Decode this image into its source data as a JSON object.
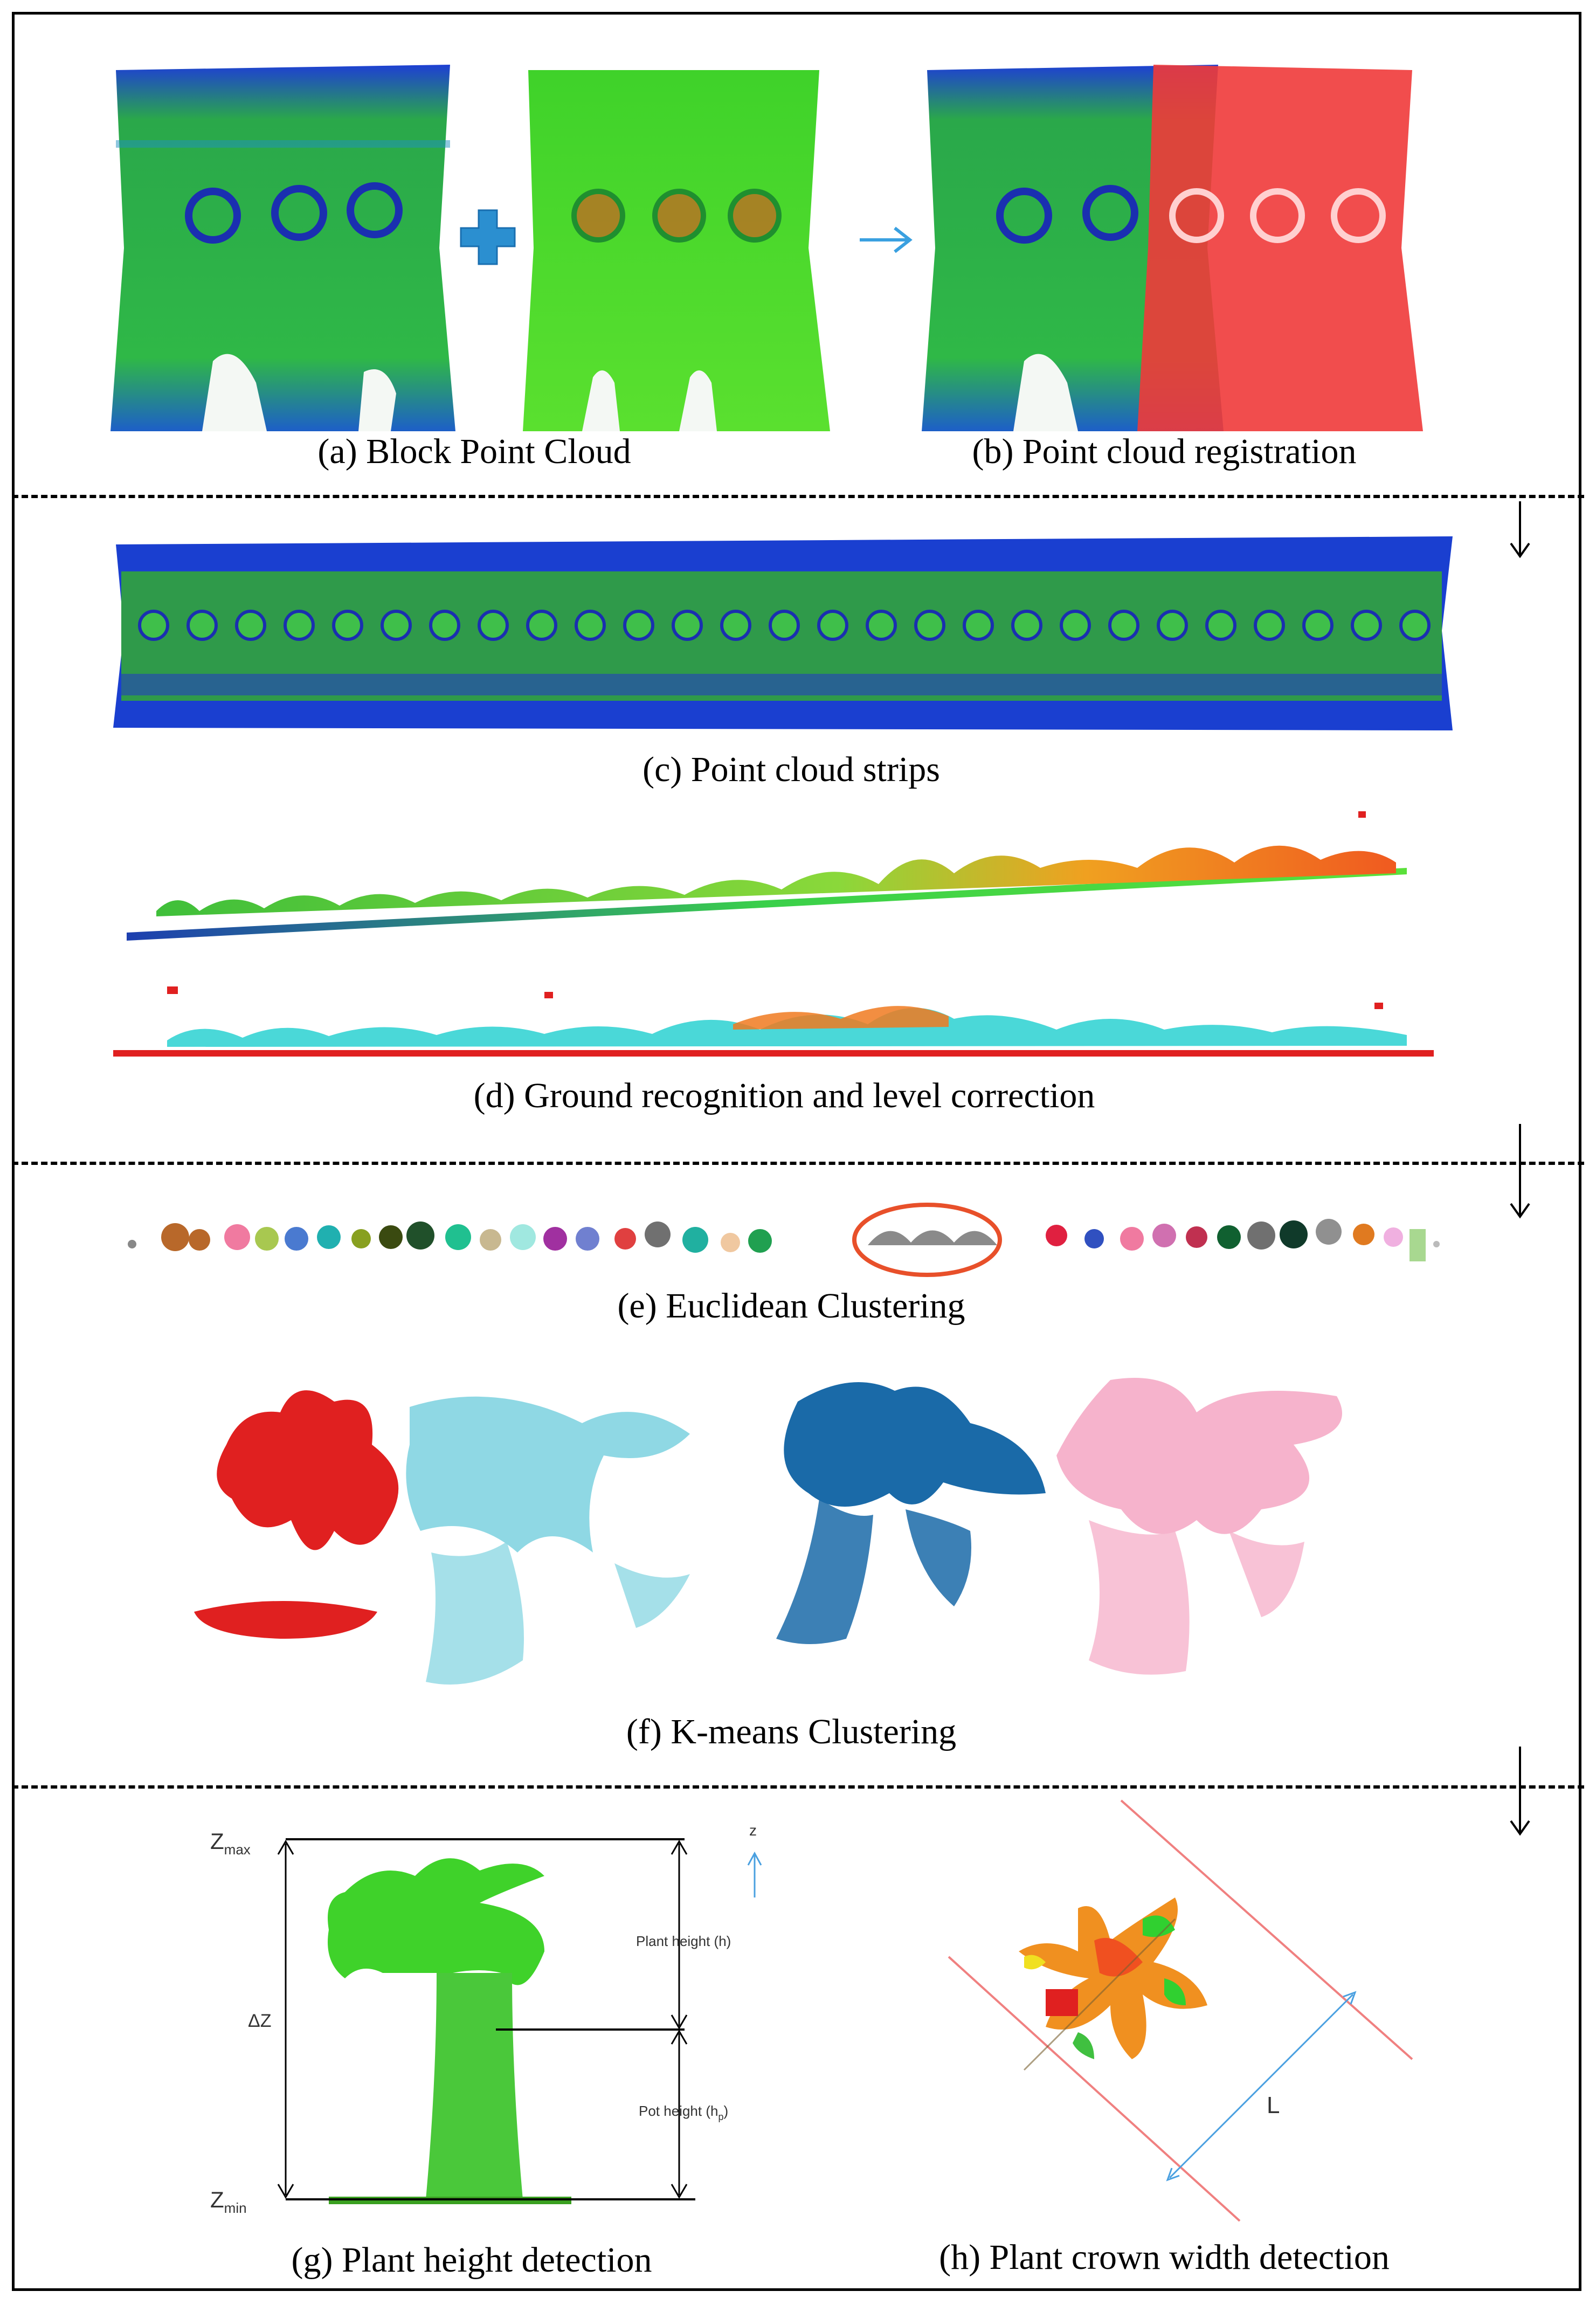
{
  "panels": {
    "a": {
      "caption": "(a)  Block Point Cloud"
    },
    "b": {
      "caption": "(b)  Point cloud registration"
    },
    "c": {
      "caption": "(c)  Point cloud strips"
    },
    "d": {
      "caption": "(d) Ground recognition and level correction"
    },
    "e": {
      "caption": "(e) Euclidean Clustering"
    },
    "f": {
      "caption": "(f) K-means Clustering"
    },
    "g": {
      "caption": "(g) Plant height detection",
      "zmax": "Z",
      "zmax_sub": "max",
      "zmin": "Z",
      "zmin_sub": "min",
      "delta_z": "ΔZ",
      "axis_z": "z",
      "plant_height": "Plant height  (h)",
      "pot_height": "Pot height  (h",
      "pot_height_sub": "p",
      "pot_height_close": ")"
    },
    "h": {
      "caption": "(h) Plant crown width detection",
      "length_label": "L"
    }
  },
  "colors": {
    "point_green": "#2fbf3a",
    "point_blue": "#1a2fd0",
    "registration_red": "#f03a3a",
    "arrow_blue": "#3aa0e0",
    "plus_blue": "#2b8fd0",
    "cluster_highlight": "#e8502a",
    "kmeans": [
      "#e02020",
      "#8fd8e4",
      "#1a6aa8",
      "#f6b3cc"
    ]
  },
  "icons": [
    "plus-icon",
    "arrow-right-icon",
    "arrow-down-icon"
  ]
}
